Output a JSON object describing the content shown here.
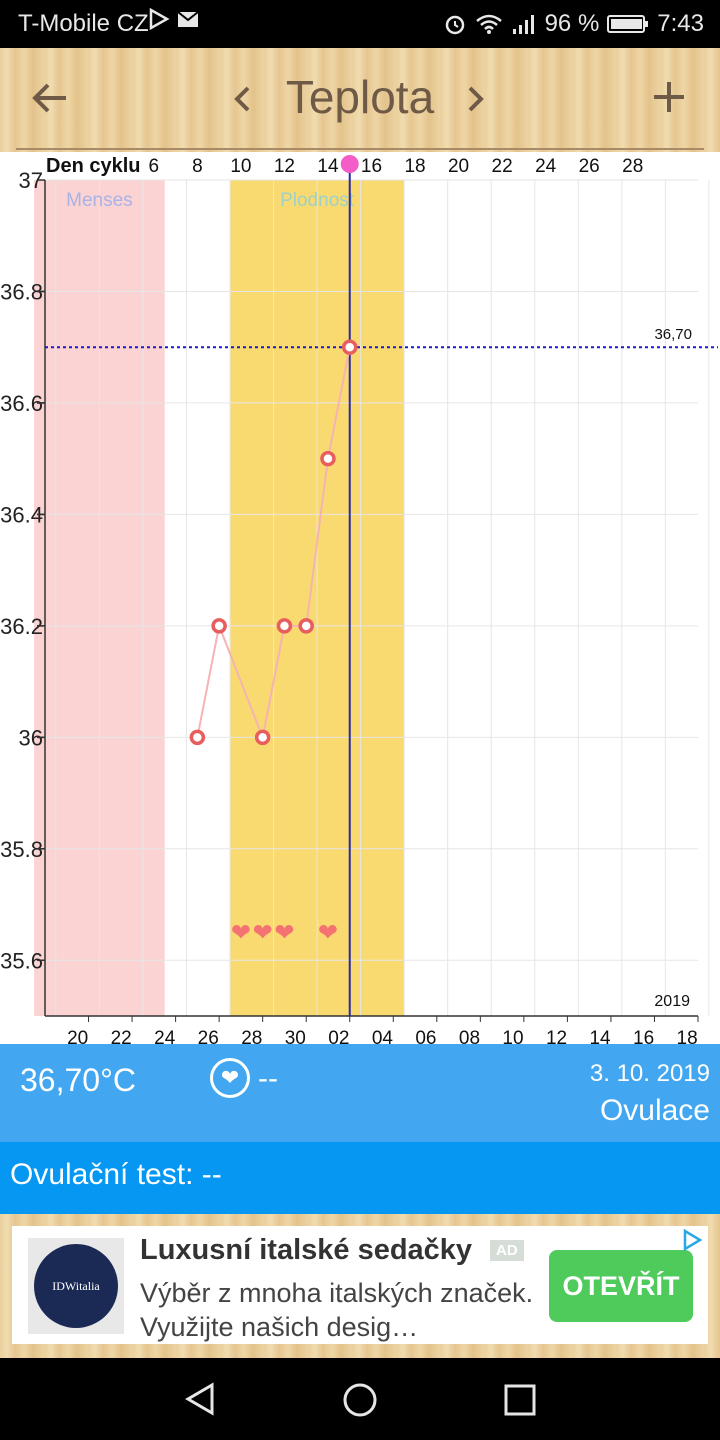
{
  "status": {
    "carrier": "T-Mobile CZ",
    "battery": "96 %",
    "time": "7:43",
    "icons_left": [
      "play-store-icon",
      "mail-icon"
    ],
    "icons_right": [
      "alarm-icon",
      "wifi-icon",
      "signal-icon",
      "battery-icon"
    ]
  },
  "toolbar": {
    "title": "Teplota",
    "back_icon": "arrow-left-icon",
    "prev_icon": "chevron-left-icon",
    "next_icon": "chevron-right-icon",
    "add_icon": "plus-icon"
  },
  "chart_data": {
    "type": "line",
    "top_axis_label": "Den cyklu",
    "cycle_day_ticks": [
      "6",
      "8",
      "10",
      "12",
      "14",
      "16",
      "18",
      "20",
      "22",
      "24",
      "26",
      "28"
    ],
    "date_ticks": [
      "20",
      "22",
      "24",
      "26",
      "28",
      "30",
      "02",
      "04",
      "06",
      "08",
      "10",
      "12",
      "14",
      "16",
      "18"
    ],
    "year_label": "2019",
    "y_ticks": [
      "37",
      "36.8",
      "36.6",
      "36.4",
      "36.2",
      "36",
      "35.8",
      "35.6"
    ],
    "ylim": [
      35.5,
      37.0
    ],
    "x_range_cycle_day": [
      1,
      31
    ],
    "series": [
      {
        "x_cycle_day": [
          8,
          9,
          11,
          12,
          13,
          14,
          15
        ],
        "values": [
          36.0,
          36.2,
          36.0,
          36.2,
          36.2,
          36.5,
          36.7
        ]
      }
    ],
    "bands": [
      {
        "label": "Menses",
        "from_cycle_day": 1,
        "to_cycle_day": 6,
        "color": "#fbd3d3",
        "label_color": "#a8b3e6"
      },
      {
        "label": "Plodnost",
        "from_cycle_day": 10,
        "to_cycle_day": 17,
        "color": "#f9da70",
        "label_color": "#9fd0c6"
      }
    ],
    "threshold": {
      "value": 36.7,
      "label": "36,70"
    },
    "selected_cycle_day": 15,
    "intercourse_days": [
      10,
      11,
      12,
      14
    ],
    "colors": {
      "line": "#f6b3b3",
      "point": "#e85d5d",
      "threshold": "#1a1ad6",
      "selected": "#2a2aa8",
      "heart": "#f47272",
      "ovulation": "#f45cc8"
    }
  },
  "info": {
    "temperature": "36,70°C",
    "sex_icon": "heart-circle-icon",
    "sex_value": "--",
    "date": "3. 10. 2019",
    "phase": "Ovulace"
  },
  "test": {
    "label": "Ovulační test: --"
  },
  "ad": {
    "title": "Luxusní italské sedačky",
    "badge": "AD",
    "description": "Výběr z mnoha italských značek. Využijte našich desig…",
    "button": "OTEVŘÍT",
    "logo_text": "IDWitalia"
  }
}
